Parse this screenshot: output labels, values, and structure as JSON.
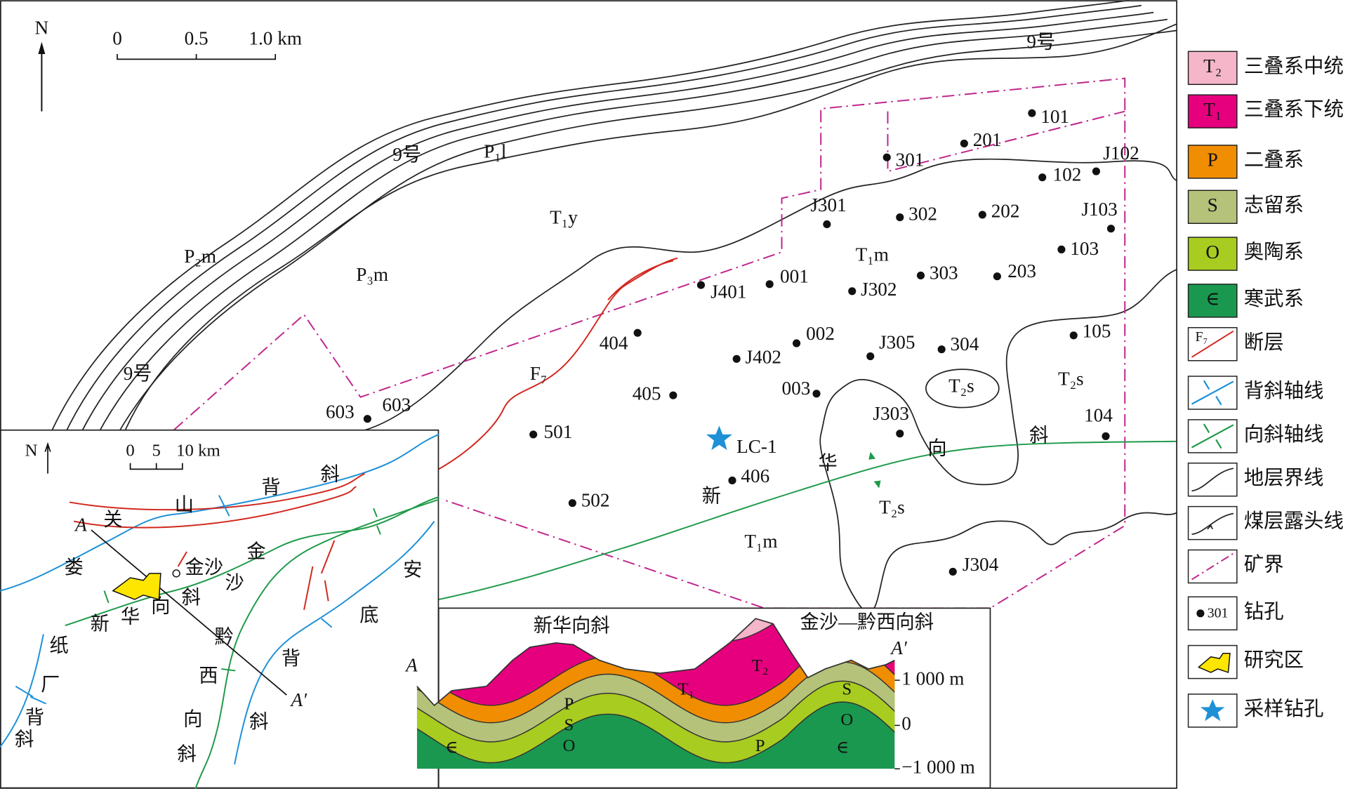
{
  "map": {
    "north": "N",
    "scale": [
      "0",
      "0.5",
      "1.0 km"
    ],
    "labels": [
      "9号",
      "9号",
      "9号",
      "P₁l",
      "T₁y",
      "P₂m",
      "P₃m",
      "T₁m",
      "T₁m",
      "T₂s",
      "T₂s",
      "T₂s",
      "F₇",
      "LC-1",
      "新",
      "华",
      "向",
      "斜",
      "603"
    ],
    "boreholes": [
      "101",
      "201",
      "301",
      "J102",
      "102",
      "J301",
      "302",
      "202",
      "J103",
      "103",
      "303",
      "203",
      "J401",
      "001",
      "J302",
      "404",
      "002",
      "J305",
      "304",
      "105",
      "J402",
      "405",
      "003",
      "J303",
      "104",
      "501",
      "406",
      "502",
      "J304",
      "603"
    ]
  },
  "inset": {
    "north": "N",
    "scale": [
      "0",
      "5",
      "10 km"
    ],
    "labels": [
      "娄",
      "关",
      "山",
      "背",
      "斜",
      "金沙",
      "金",
      "沙",
      "黔",
      "西",
      "向",
      "斜",
      "新",
      "华",
      "向",
      "斜",
      "安",
      "底",
      "背",
      "斜",
      "纸",
      "厂",
      "背",
      "斜"
    ],
    "section": [
      "A",
      "A′"
    ]
  },
  "section": {
    "titles": [
      "新华向斜",
      "金沙—黔西向斜"
    ],
    "ends": [
      "A",
      "A′"
    ],
    "elevations": [
      "1 000 m",
      "0",
      "−1 000 m"
    ],
    "units": [
      "P",
      "S",
      "O",
      "∈",
      "T₁",
      "T₂",
      "P",
      "S",
      "O",
      "∈"
    ]
  },
  "legend": [
    {
      "code": "T₂",
      "label": "三叠系中统"
    },
    {
      "code": "T₁",
      "label": "三叠系下统"
    },
    {
      "code": "P",
      "label": "二叠系"
    },
    {
      "code": "S",
      "label": "志留系"
    },
    {
      "code": "O",
      "label": "奥陶系"
    },
    {
      "code": "∈",
      "label": "寒武系"
    },
    {
      "code": "F₇",
      "label": "断层"
    },
    {
      "label": "背斜轴线"
    },
    {
      "label": "向斜轴线"
    },
    {
      "label": "地层界线"
    },
    {
      "label": "煤层露头线"
    },
    {
      "label": "矿界"
    },
    {
      "code": "301",
      "label": "钻孔"
    },
    {
      "label": "研究区"
    },
    {
      "label": "采样钻孔"
    }
  ]
}
